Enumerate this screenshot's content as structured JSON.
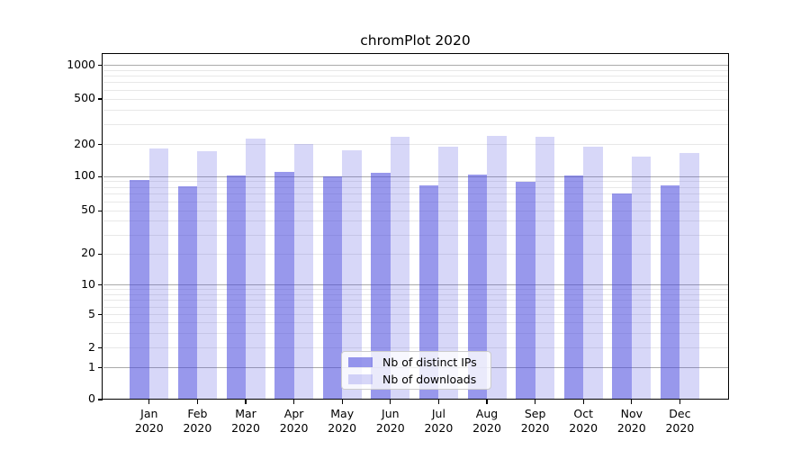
{
  "title": "chromPlot 2020",
  "colors": {
    "bar_base_rgb": "68,68,221",
    "bar_dark_alpha": 0.55,
    "bar_light_alpha": 0.21,
    "grid_major": "#aaaaaa",
    "grid_minor": "#e8e8e8",
    "spine": "#000000"
  },
  "chart_data": {
    "type": "bar",
    "title": "chromPlot 2020",
    "categories": [
      "Jan 2020",
      "Feb 2020",
      "Mar 2020",
      "Apr 2020",
      "May 2020",
      "Jun 2020",
      "Jul 2020",
      "Aug 2020",
      "Sep 2020",
      "Oct 2020",
      "Nov 2020",
      "Dec 2020"
    ],
    "series": [
      {
        "name": "Nb of distinct IPs",
        "values": [
          94,
          82,
          102,
          110,
          100,
          108,
          84,
          104,
          90,
          103,
          71,
          83
        ]
      },
      {
        "name": "Nb of downloads",
        "values": [
          185,
          173,
          227,
          202,
          177,
          236,
          190,
          240,
          232,
          192,
          153,
          167
        ]
      }
    ],
    "xlabel": "",
    "ylabel": "",
    "yscale": "symlog",
    "yticks": [
      0,
      1,
      2,
      5,
      10,
      20,
      50,
      100,
      200,
      500,
      1000
    ],
    "ylim": [
      0,
      1290
    ],
    "grid": true,
    "legend_position": "lower center"
  },
  "legend": {
    "items": [
      {
        "label": "Nb of distinct IPs"
      },
      {
        "label": "Nb of downloads"
      }
    ]
  }
}
